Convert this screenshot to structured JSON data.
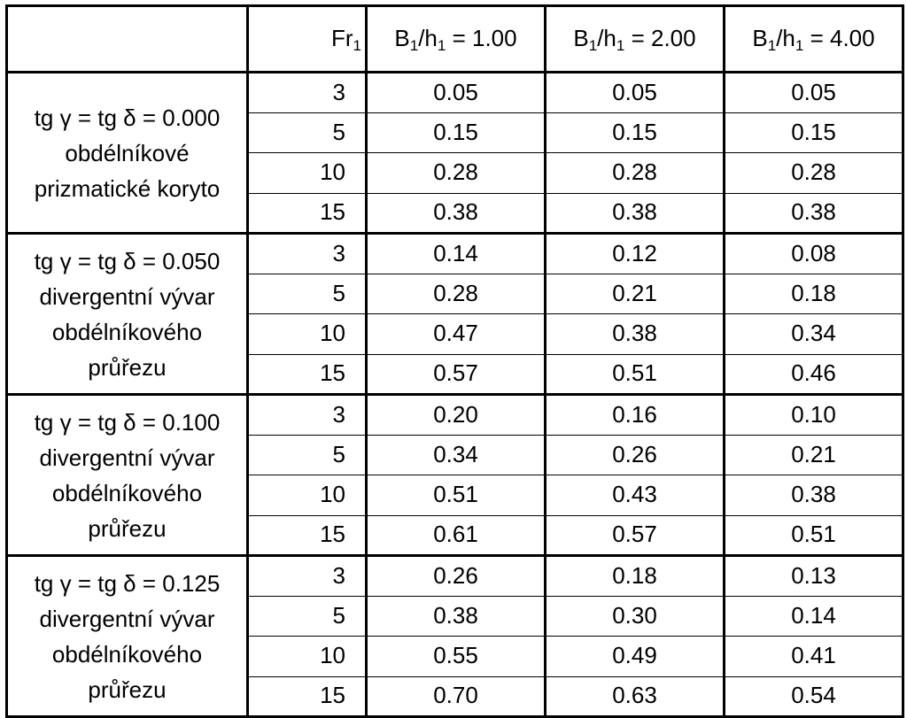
{
  "table": {
    "header": {
      "fr_label": "Fr",
      "fr_sub": "1",
      "columns": [
        {
          "b": "B",
          "b_sub": "1",
          "sep": "/h",
          "h_sub": "1",
          "rest": " = 1.00"
        },
        {
          "b": "B",
          "b_sub": "1",
          "sep": "/h",
          "h_sub": "1",
          "rest": " = 2.00"
        },
        {
          "b": "B",
          "b_sub": "1",
          "sep": "/h",
          "h_sub": "1",
          "rest": " = 4.00"
        }
      ]
    },
    "groups": [
      {
        "label": "tg γ = tg δ = 0.000 obdélníkové prizmatické koryto",
        "rows": [
          {
            "fr": "3",
            "v": [
              "0.05",
              "0.05",
              "0.05"
            ]
          },
          {
            "fr": "5",
            "v": [
              "0.15",
              "0.15",
              "0.15"
            ]
          },
          {
            "fr": "10",
            "v": [
              "0.28",
              "0.28",
              "0.28"
            ]
          },
          {
            "fr": "15",
            "v": [
              "0.38",
              "0.38",
              "0.38"
            ]
          }
        ]
      },
      {
        "label": "tg γ = tg δ = 0.050 divergentní vývar obdélníkového průřezu",
        "rows": [
          {
            "fr": "3",
            "v": [
              "0.14",
              "0.12",
              "0.08"
            ]
          },
          {
            "fr": "5",
            "v": [
              "0.28",
              "0.21",
              "0.18"
            ]
          },
          {
            "fr": "10",
            "v": [
              "0.47",
              "0.38",
              "0.34"
            ]
          },
          {
            "fr": "15",
            "v": [
              "0.57",
              "0.51",
              "0.46"
            ]
          }
        ]
      },
      {
        "label": "tg γ = tg δ = 0.100 divergentní vývar obdélníkového průřezu",
        "rows": [
          {
            "fr": "3",
            "v": [
              "0.20",
              "0.16",
              "0.10"
            ]
          },
          {
            "fr": "5",
            "v": [
              "0.34",
              "0.26",
              "0.21"
            ]
          },
          {
            "fr": "10",
            "v": [
              "0.51",
              "0.43",
              "0.38"
            ]
          },
          {
            "fr": "15",
            "v": [
              "0.61",
              "0.57",
              "0.51"
            ]
          }
        ]
      },
      {
        "label": "tg γ = tg δ = 0.125 divergentní vývar obdélníkového průřezu",
        "rows": [
          {
            "fr": "3",
            "v": [
              "0.26",
              "0.18",
              "0.13"
            ]
          },
          {
            "fr": "5",
            "v": [
              "0.38",
              "0.30",
              "0.14"
            ]
          },
          {
            "fr": "10",
            "v": [
              "0.55",
              "0.49",
              "0.41"
            ]
          },
          {
            "fr": "15",
            "v": [
              "0.70",
              "0.63",
              "0.54"
            ]
          }
        ]
      }
    ]
  }
}
